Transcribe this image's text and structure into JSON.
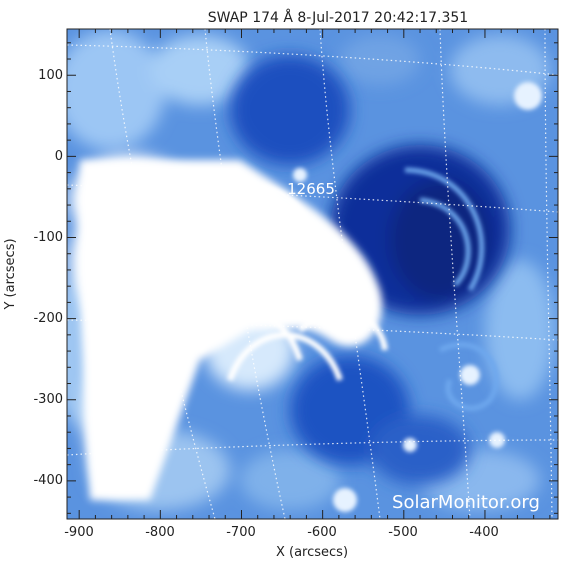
{
  "title": "SWAP 174 Å  8-Jul-2017 20:42:17.351",
  "region_label": "12665",
  "watermark": "SolarMonitor.org",
  "axes": {
    "xlabel": "X (arcsecs)",
    "ylabel": "Y (arcsecs)",
    "xticks": [
      "-900",
      "-800",
      "-700",
      "-600",
      "-500",
      "-400"
    ],
    "yticks": [
      "100",
      "0",
      "-100",
      "-200",
      "-300",
      "-400"
    ],
    "xrange": [
      -915,
      -310
    ],
    "yrange": [
      -447,
      157
    ]
  },
  "colors": {
    "deep": "#0a2a8c",
    "mid": "#2e6fd6",
    "light": "#8fbcf0",
    "bright": "#ffffff"
  }
}
